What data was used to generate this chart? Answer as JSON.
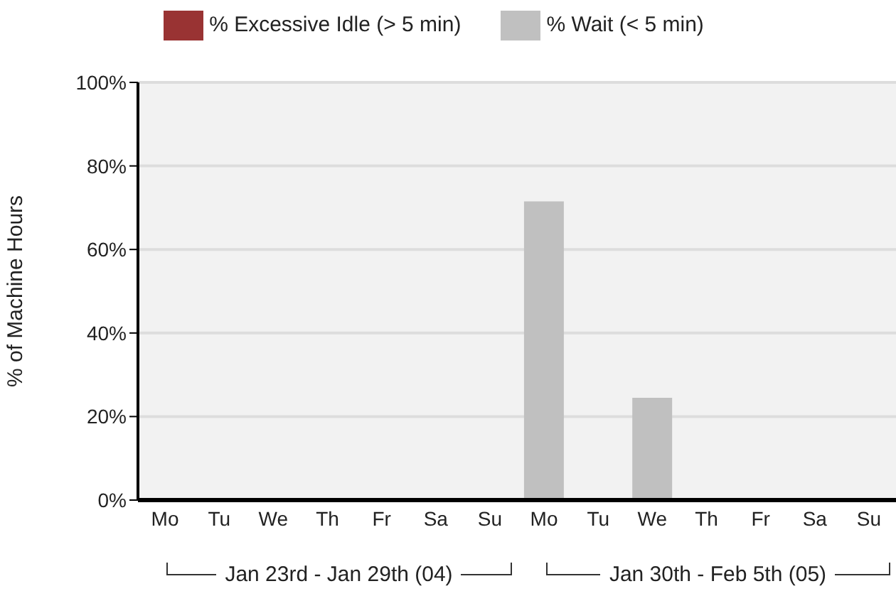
{
  "chart_data": {
    "type": "bar",
    "stacked": true,
    "ylabel": "% of Machine Hours",
    "categories": [
      "Mo",
      "Tu",
      "We",
      "Th",
      "Fr",
      "Sa",
      "Su",
      "Mo",
      "Tu",
      "We",
      "Th",
      "Fr",
      "Sa",
      "Su"
    ],
    "series": [
      {
        "name": "% Excessive Idle (> 5 min)",
        "color": "#993333",
        "values": [
          0,
          0,
          0,
          0,
          0,
          0,
          0,
          0,
          0,
          0,
          0,
          0,
          0,
          0
        ]
      },
      {
        "name": "% Wait (< 5 min)",
        "color": "#c0c0c0",
        "values": [
          0,
          0,
          0,
          0,
          0,
          0,
          0,
          71.5,
          0,
          24.5,
          0,
          0,
          0,
          0
        ]
      }
    ],
    "ylim": [
      0,
      100
    ],
    "yticks": [
      {
        "value": 0,
        "label": "0%"
      },
      {
        "value": 20,
        "label": "20%"
      },
      {
        "value": 40,
        "label": "40%"
      },
      {
        "value": 60,
        "label": "60%"
      },
      {
        "value": 80,
        "label": "80%"
      },
      {
        "value": 100,
        "label": "100%"
      }
    ],
    "grid": "y",
    "legend": "top",
    "annotations": [
      "Jan 23rd - Jan 29th (04)",
      "Jan 30th - Feb 5th (05)"
    ]
  }
}
